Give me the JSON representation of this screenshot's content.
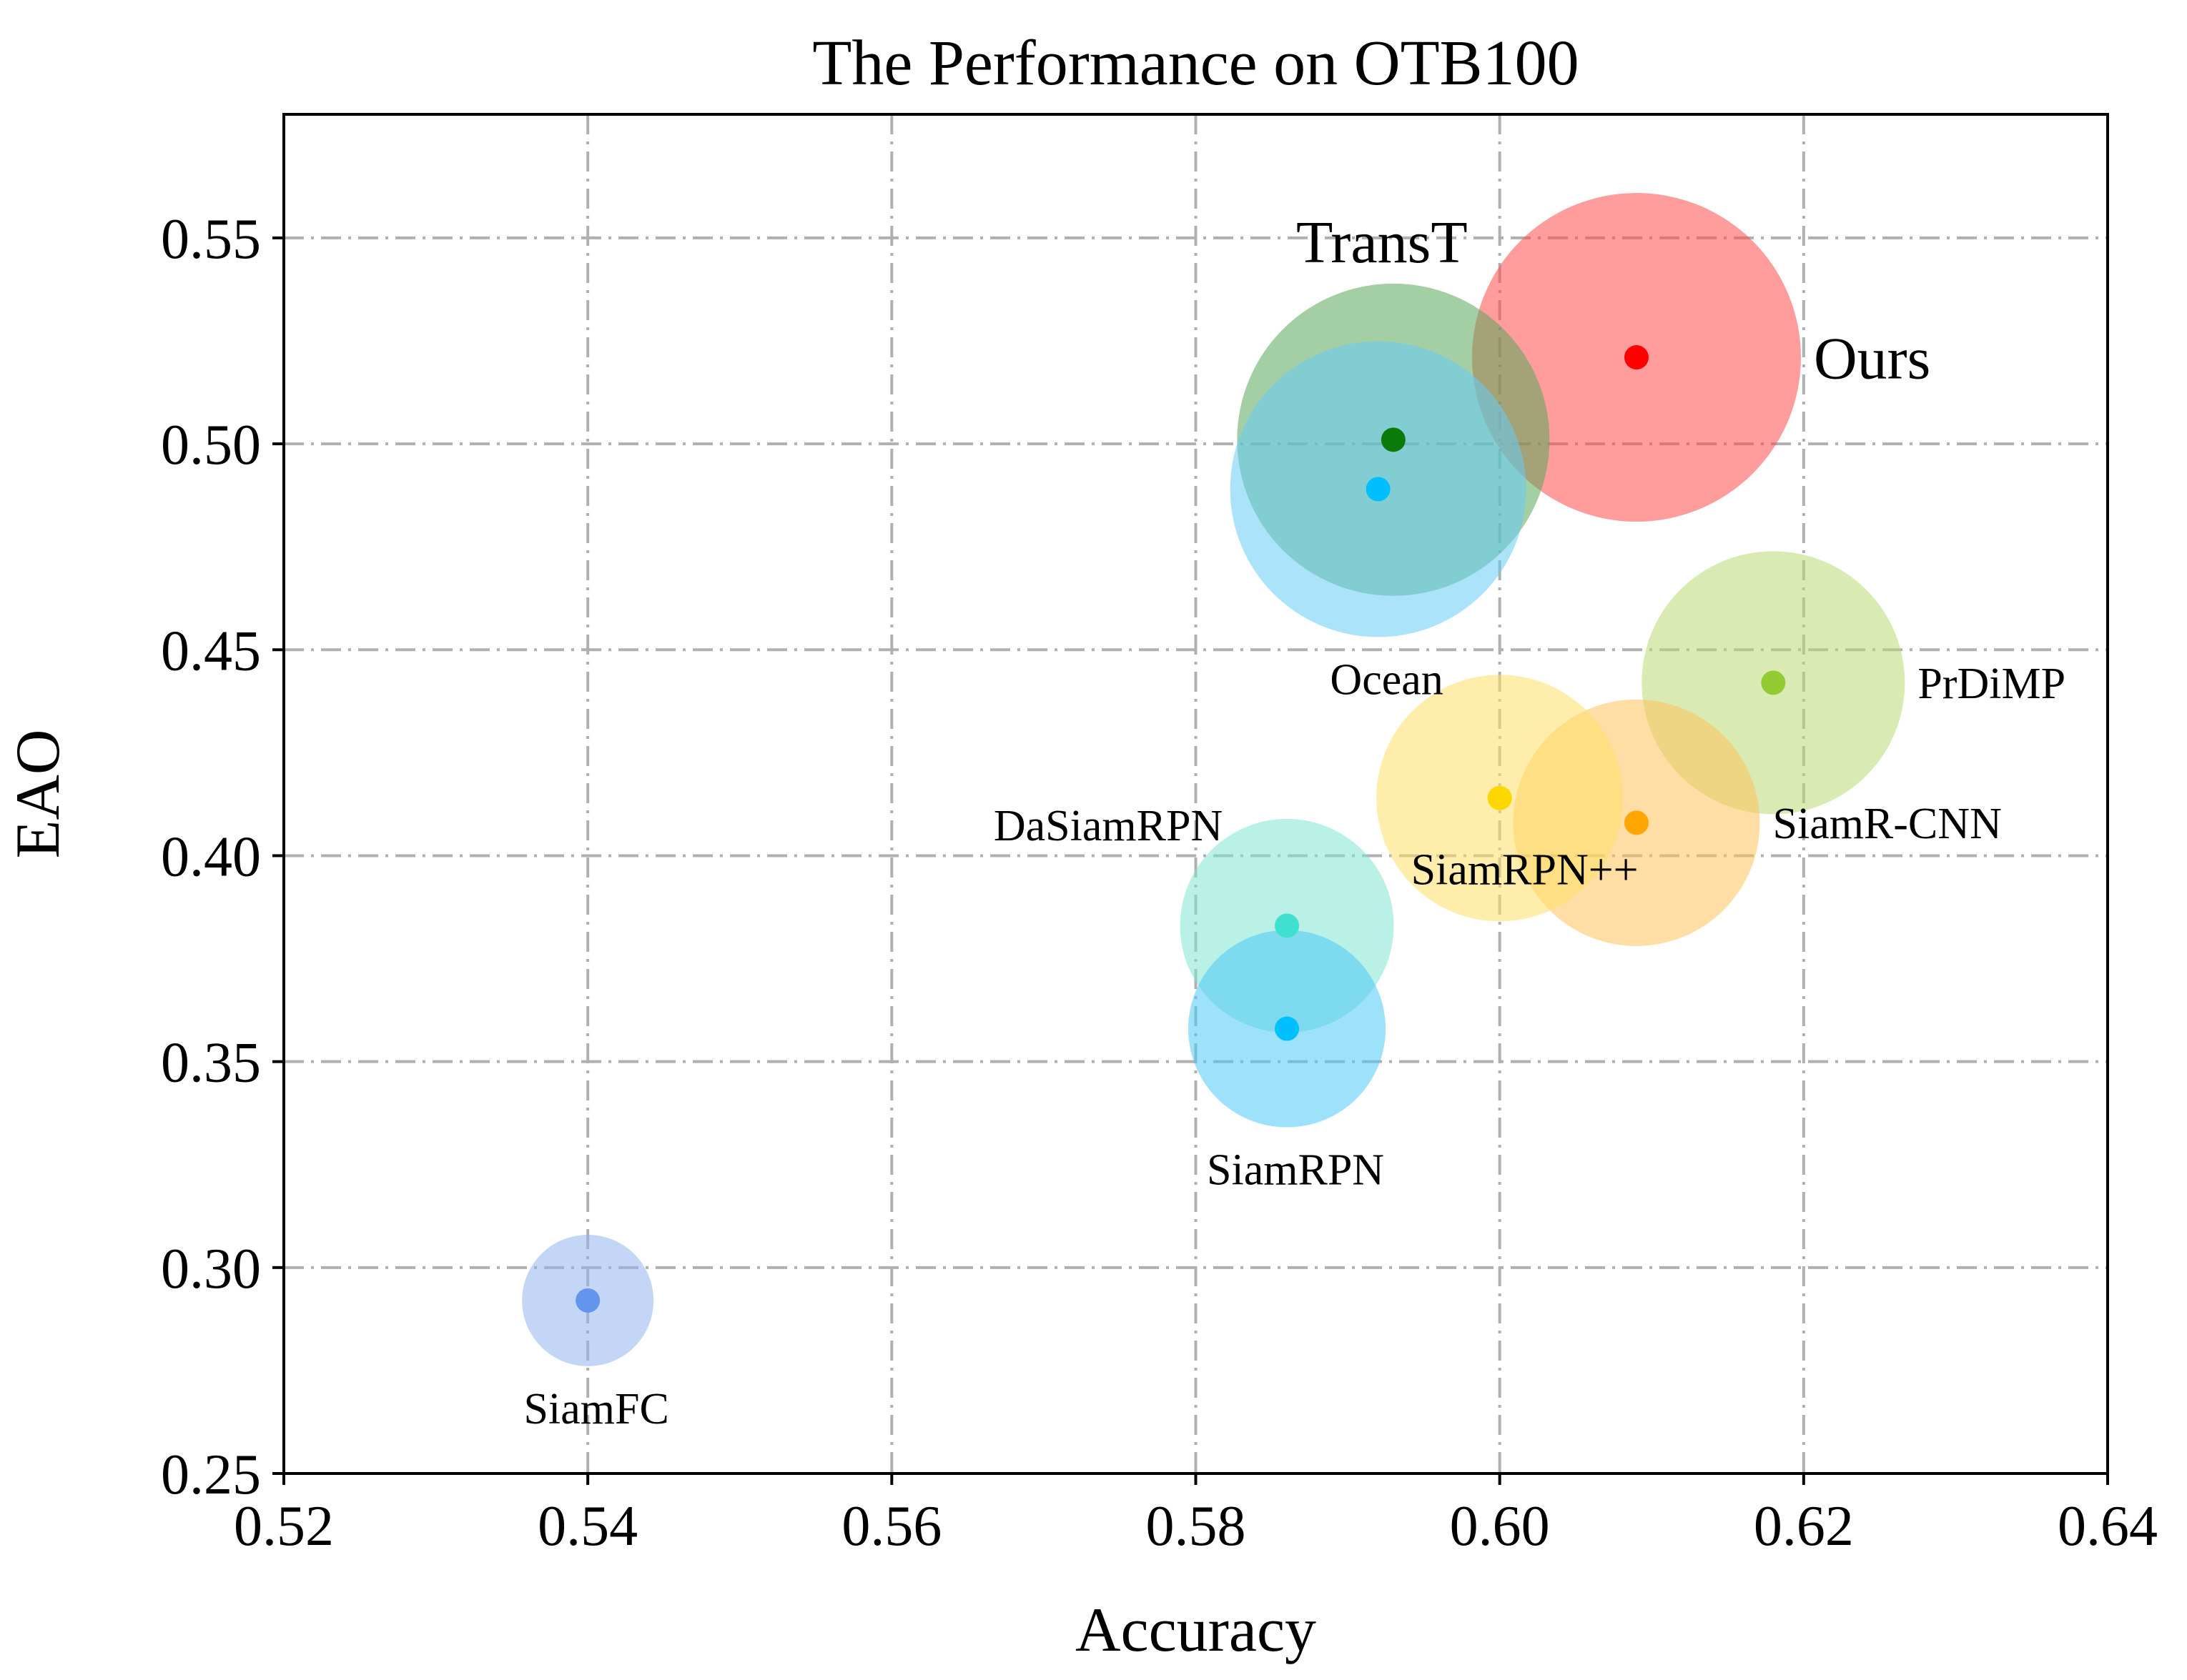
{
  "chart_data": {
    "type": "scatter",
    "title": "The Performance on OTB100",
    "xlabel": "Accuracy",
    "ylabel": "EAO",
    "xlim": [
      0.52,
      0.64
    ],
    "ylim": [
      0.25,
      0.58
    ],
    "xticks": [
      "0.52",
      "0.54",
      "0.56",
      "0.58",
      "0.60",
      "0.62",
      "0.64"
    ],
    "yticks": [
      "0.25",
      "0.30",
      "0.35",
      "0.40",
      "0.45",
      "0.50",
      "0.55"
    ],
    "grid": true,
    "points": [
      {
        "name": "Ours",
        "x": 0.609,
        "y": 0.521,
        "bubble": 1.0,
        "color": "#ff4d4d",
        "dot": "#ff0000",
        "label_size": "large",
        "label_pos": "right"
      },
      {
        "name": "TransT",
        "x": 0.593,
        "y": 0.501,
        "bubble": 0.95,
        "color": "#5aa85a",
        "dot": "#0a7a0a",
        "label_size": "large",
        "label_pos": "top"
      },
      {
        "name": "Ocean",
        "x": 0.592,
        "y": 0.489,
        "bubble": 0.9,
        "color": "#66ccf5",
        "dot": "#00bfff",
        "label_size": "small",
        "label_pos": "bottom"
      },
      {
        "name": "PrDiMP",
        "x": 0.618,
        "y": 0.442,
        "bubble": 0.8,
        "color": "#b9db74",
        "dot": "#92cc32",
        "label_size": "small",
        "label_pos": "right"
      },
      {
        "name": "SiamR-CNN",
        "x": 0.609,
        "y": 0.408,
        "bubble": 0.75,
        "color": "#ffc25c",
        "dot": "#ffa500",
        "label_size": "small",
        "label_pos": "right"
      },
      {
        "name": "SiamRPN++",
        "x": 0.6,
        "y": 0.414,
        "bubble": 0.75,
        "color": "#ffe066",
        "dot": "#ffd700",
        "label_size": "small",
        "label_pos": "bottom-left"
      },
      {
        "name": "DaSiamRPN",
        "x": 0.586,
        "y": 0.383,
        "bubble": 0.65,
        "color": "#7fe5d2",
        "dot": "#40e0d0",
        "label_size": "small",
        "label_pos": "top-left"
      },
      {
        "name": "SiamRPN",
        "x": 0.586,
        "y": 0.358,
        "bubble": 0.6,
        "color": "#4ec9f5",
        "dot": "#00bfff",
        "label_size": "small",
        "label_pos": "bottom"
      },
      {
        "name": "SiamFC",
        "x": 0.54,
        "y": 0.292,
        "bubble": 0.4,
        "color": "#94b4ec",
        "dot": "#6495ed",
        "label_size": "small",
        "label_pos": "bottom"
      }
    ]
  }
}
